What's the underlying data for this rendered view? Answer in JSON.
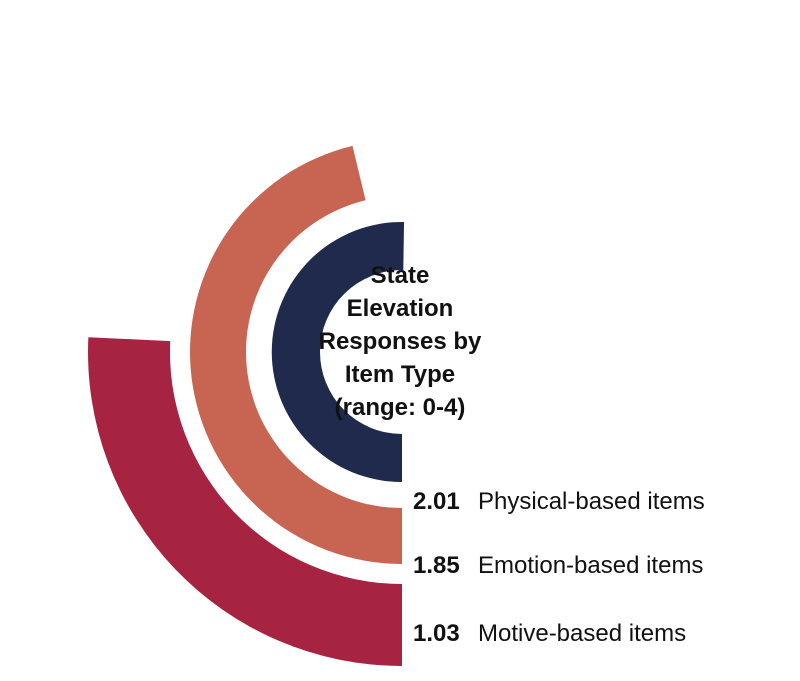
{
  "chart_data": {
    "type": "radial-bar",
    "title_lines": [
      "State",
      "Elevation",
      "Responses by",
      "Item Type",
      "(range: 0-4)"
    ],
    "range": [
      0,
      4
    ],
    "series": [
      {
        "name": "Physical-based items",
        "value": 2.01,
        "value_label": "2.01",
        "color": "#1f2a4d"
      },
      {
        "name": "Emotion-based items",
        "value": 1.85,
        "value_label": "1.85",
        "color": "#c86552"
      },
      {
        "name": "Motive-based items",
        "value": 1.03,
        "value_label": "1.03",
        "color": "#a62441"
      }
    ]
  }
}
